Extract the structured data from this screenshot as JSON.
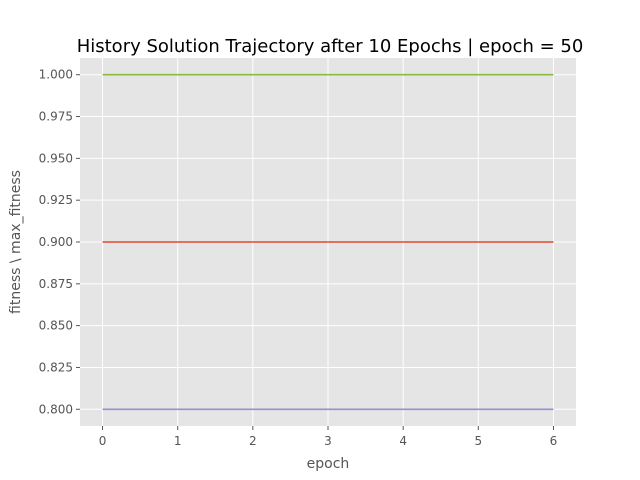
{
  "chart_data": {
    "type": "line",
    "title": "History Solution Trajectory after 10 Epochs | epoch = 50",
    "xlabel": "epoch",
    "ylabel": "fitness \\ max_fitness",
    "x": [
      0,
      1,
      2,
      3,
      4,
      5,
      6
    ],
    "xlim": [
      -0.3,
      6.3
    ],
    "ylim": [
      0.79,
      1.01
    ],
    "xticks": [
      "0",
      "1",
      "2",
      "3",
      "4",
      "5",
      "6"
    ],
    "yticks": [
      "0.800",
      "0.825",
      "0.850",
      "0.875",
      "0.900",
      "0.925",
      "0.950",
      "0.975",
      "1.000"
    ],
    "grid": true,
    "background": "#e5e5e5",
    "series": [
      {
        "values": [
          1.0,
          1.0,
          1.0,
          1.0,
          1.0,
          1.0,
          1.0
        ],
        "color": "#8eba42"
      },
      {
        "values": [
          0.9,
          0.9,
          0.9,
          0.9,
          0.9,
          0.9,
          0.9
        ],
        "color": "#e24a33"
      },
      {
        "values": [
          0.8,
          0.8,
          0.8,
          0.8,
          0.8,
          0.8,
          0.8
        ],
        "color": "#988ed5"
      }
    ]
  }
}
